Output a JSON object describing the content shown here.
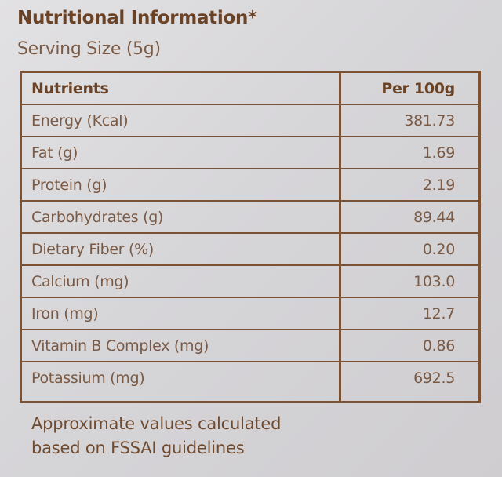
{
  "title": "Nutritional Information*",
  "serving_size": "Serving Size (5g)",
  "table": {
    "header": {
      "nutrients": "Nutrients",
      "per_100g": "Per 100g"
    },
    "rows": [
      {
        "name": "Energy (Kcal)",
        "value": "381.73"
      },
      {
        "name": "Fat (g)",
        "value": "1.69"
      },
      {
        "name": "Protein (g)",
        "value": "2.19"
      },
      {
        "name": "Carbohydrates (g)",
        "value": "89.44"
      },
      {
        "name": "Dietary Fiber (%)",
        "value": "0.20"
      },
      {
        "name": "Calcium (mg)",
        "value": "103.0"
      },
      {
        "name": "Iron (mg)",
        "value": "12.7"
      },
      {
        "name": "Vitamin B Complex (mg)",
        "value": "0.86"
      },
      {
        "name": "Potassium (mg)",
        "value": "692.5"
      }
    ]
  },
  "footnote": {
    "line1": "Approximate values calculated",
    "line2": "based on FSSAI guidelines"
  }
}
